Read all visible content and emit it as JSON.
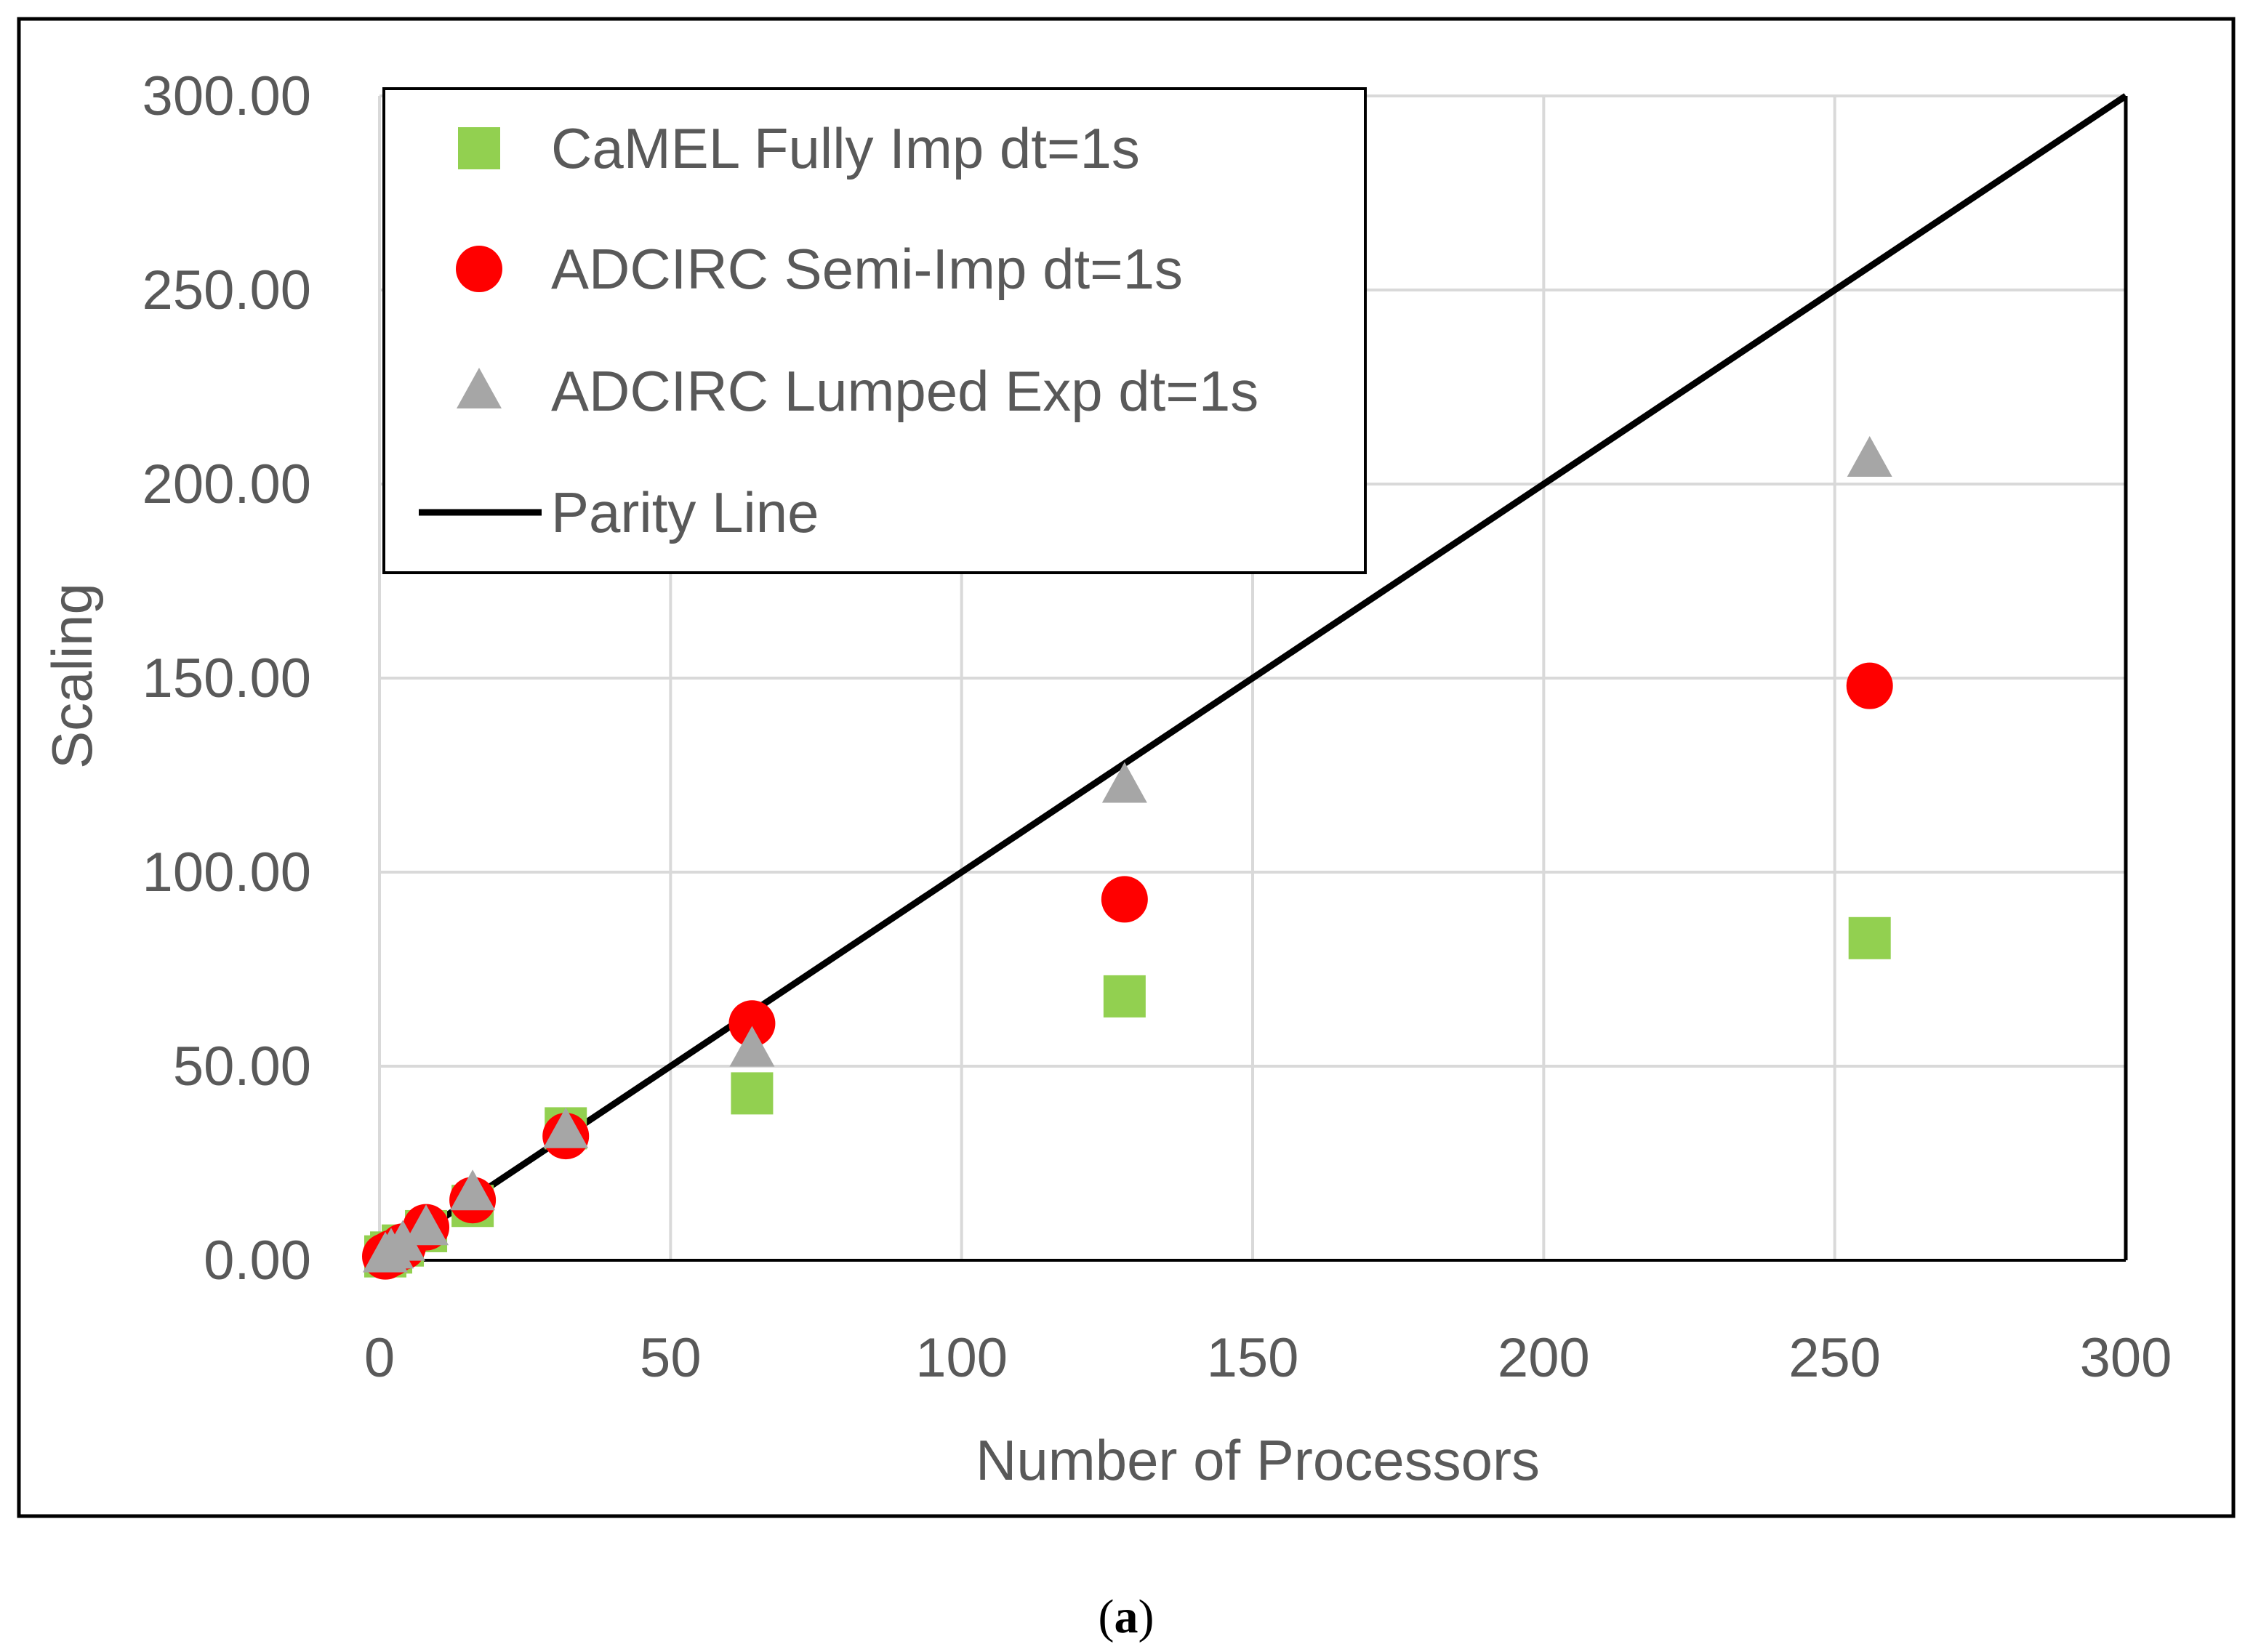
{
  "colors": {
    "camel": "#92d050",
    "semi": "#ff0000",
    "lumped": "#a6a6a6",
    "parity": "#000000",
    "grid": "#d9d9d9",
    "text": "#595959"
  },
  "caption": {
    "open": "(",
    "letter": "a",
    "close": ")"
  },
  "chart_data": {
    "type": "scatter",
    "title": "",
    "xlabel": "Number of Processors",
    "ylabel": "Scaling",
    "xlim": [
      0,
      300
    ],
    "ylim": [
      0,
      300
    ],
    "xticks": [
      0,
      50,
      100,
      150,
      200,
      250,
      300
    ],
    "yticks": [
      0,
      50,
      100,
      150,
      200,
      250,
      300
    ],
    "xtick_labels": [
      "0",
      "50",
      "100",
      "150",
      "200",
      "250",
      "300"
    ],
    "ytick_labels": [
      "0.00",
      "50.00",
      "100.00",
      "150.00",
      "200.00",
      "250.00",
      "300.00"
    ],
    "grid": true,
    "legend_position": "top-left",
    "series": [
      {
        "name": "CaMEL Fully Imp dt=1s",
        "marker": "square",
        "color_key": "camel",
        "x": [
          1,
          2,
          4,
          8,
          16,
          32,
          64,
          128,
          256
        ],
        "y": [
          1.0,
          2.0,
          3.8,
          7.5,
          14.0,
          34.0,
          43.0,
          68.0,
          83.0
        ]
      },
      {
        "name": "ADCIRC Semi-Imp dt=1s",
        "marker": "circle",
        "color_key": "semi",
        "x": [
          1,
          2,
          4,
          8,
          16,
          32,
          64,
          128,
          256
        ],
        "y": [
          1.0,
          1.8,
          3.5,
          8.5,
          15.5,
          32.0,
          61.0,
          93.0,
          148.0
        ]
      },
      {
        "name": "ADCIRC Lumped Exp dt=1s",
        "marker": "triangle",
        "color_key": "lumped",
        "x": [
          1,
          2,
          4,
          8,
          16,
          32,
          64,
          128,
          256
        ],
        "y": [
          1.0,
          2.0,
          4.0,
          8.0,
          17.0,
          33.0,
          54.0,
          122.0,
          206.0
        ]
      },
      {
        "name": "Parity Line",
        "marker": "line",
        "color_key": "parity",
        "x": [
          0,
          300
        ],
        "y": [
          0,
          300
        ]
      }
    ]
  }
}
